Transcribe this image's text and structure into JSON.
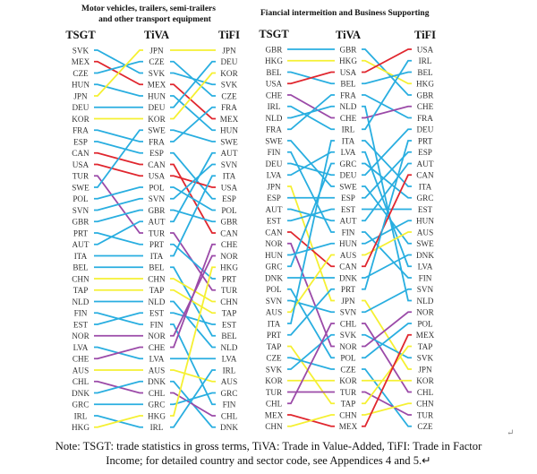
{
  "chart_data": {
    "type": "bump",
    "colors": {
      "blue": "#29aee0",
      "red": "#e0262e",
      "yellow": "#f5f032",
      "purple": "#9b4aa8"
    },
    "color_groups": {
      "yellow": [
        "JPN",
        "KOR",
        "CHN",
        "TAP",
        "AUS",
        "HKG"
      ],
      "red": [
        "MEX",
        "CAN",
        "USA"
      ],
      "purple": [
        "TUR",
        "NOR",
        "CHE",
        "CHL"
      ]
    },
    "columns": [
      "TSGT",
      "TiVA",
      "TiFI"
    ],
    "panels": [
      {
        "title_lines": [
          "Motor vehicles, trailers, semi-trailers",
          "and other transport equipment"
        ],
        "rankings": {
          "TSGT": [
            "SVK",
            "MEX",
            "CZE",
            "HUN",
            "JPN",
            "DEU",
            "KOR",
            "FRA",
            "ESP",
            "CAN",
            "USA",
            "TUR",
            "SWE",
            "POL",
            "SVN",
            "GBR",
            "PRT",
            "AUT",
            "ITA",
            "BEL",
            "CHN",
            "TAP",
            "NLD",
            "FIN",
            "EST",
            "NOR",
            "LVA",
            "CHE",
            "AUS",
            "CHL",
            "DNK",
            "GRC",
            "IRL",
            "HKG"
          ],
          "TiVA": [
            "JPN",
            "CZE",
            "SVK",
            "MEX",
            "HUN",
            "DEU",
            "KOR",
            "SWE",
            "FRA",
            "ESP",
            "CAN",
            "USA",
            "POL",
            "SVN",
            "GBR",
            "AUT",
            "TUR",
            "PRT",
            "ITA",
            "BEL",
            "CHN",
            "TAP",
            "NLD",
            "EST",
            "FIN",
            "NOR",
            "CHE",
            "LVA",
            "AUS",
            "DNK",
            "CHL",
            "GRC",
            "HKG",
            "IRL"
          ],
          "TiFI": [
            "JPN",
            "DEU",
            "KOR",
            "SVK",
            "CZE",
            "FRA",
            "MEX",
            "HUN",
            "SWE",
            "AUT",
            "SVN",
            "ITA",
            "USA",
            "ESP",
            "POL",
            "GBR",
            "CAN",
            "CHE",
            "NOR",
            "HKG",
            "PRT",
            "TUR",
            "CHN",
            "TAP",
            "EST",
            "BEL",
            "NLD",
            "LVA",
            "IRL",
            "AUS",
            "GRC",
            "FIN",
            "CHL",
            "DNK"
          ]
        }
      },
      {
        "title_lines": [
          "Fiancial intermeition and Business Supporting"
        ],
        "rankings": {
          "TSGT": [
            "GBR",
            "HKG",
            "BEL",
            "USA",
            "CHE",
            "IRL",
            "NLD",
            "FRA",
            "SWE",
            "FIN",
            "DEU",
            "LVA",
            "JPN",
            "ESP",
            "AUT",
            "EST",
            "CAN",
            "NOR",
            "HUN",
            "GRC",
            "DNK",
            "POL",
            "SVN",
            "AUS",
            "ITA",
            "PRT",
            "TAP",
            "CZE",
            "SVK",
            "KOR",
            "TUR",
            "CHL",
            "MEX",
            "CHN"
          ],
          "TiVA": [
            "GBR",
            "HKG",
            "USA",
            "BEL",
            "FRA",
            "NLD",
            "CHE",
            "IRL",
            "ITA",
            "LVA",
            "GRC",
            "DEU",
            "SWE",
            "ESP",
            "EST",
            "AUT",
            "FIN",
            "HUN",
            "AUS",
            "CAN",
            "DNK",
            "PRT",
            "JPN",
            "SVN",
            "CHL",
            "SVK",
            "NOR",
            "POL",
            "CZE",
            "KOR",
            "TUR",
            "TAP",
            "CHN",
            "MEX"
          ],
          "TiFI": [
            "USA",
            "IRL",
            "BEL",
            "HKG",
            "GBR",
            "CHE",
            "FRA",
            "DEU",
            "PRT",
            "ESP",
            "AUT",
            "CAN",
            "ITA",
            "GRC",
            "EST",
            "HUN",
            "AUS",
            "SWE",
            "DNK",
            "LVA",
            "FIN",
            "SVN",
            "NLD",
            "NOR",
            "POL",
            "MEX",
            "TAP",
            "SVK",
            "JPN",
            "KOR",
            "CHL",
            "CHN",
            "TUR",
            "CZE"
          ]
        }
      }
    ],
    "note_lines": [
      "Note: TSGT: trade statistics in gross terms, TiVA: Trade in Value-Added, TiFI: Trade in Factor",
      "Income; for detailed country and sector code, see Appendices 4 and 5.↵"
    ],
    "paragraph_mark": "↵"
  }
}
